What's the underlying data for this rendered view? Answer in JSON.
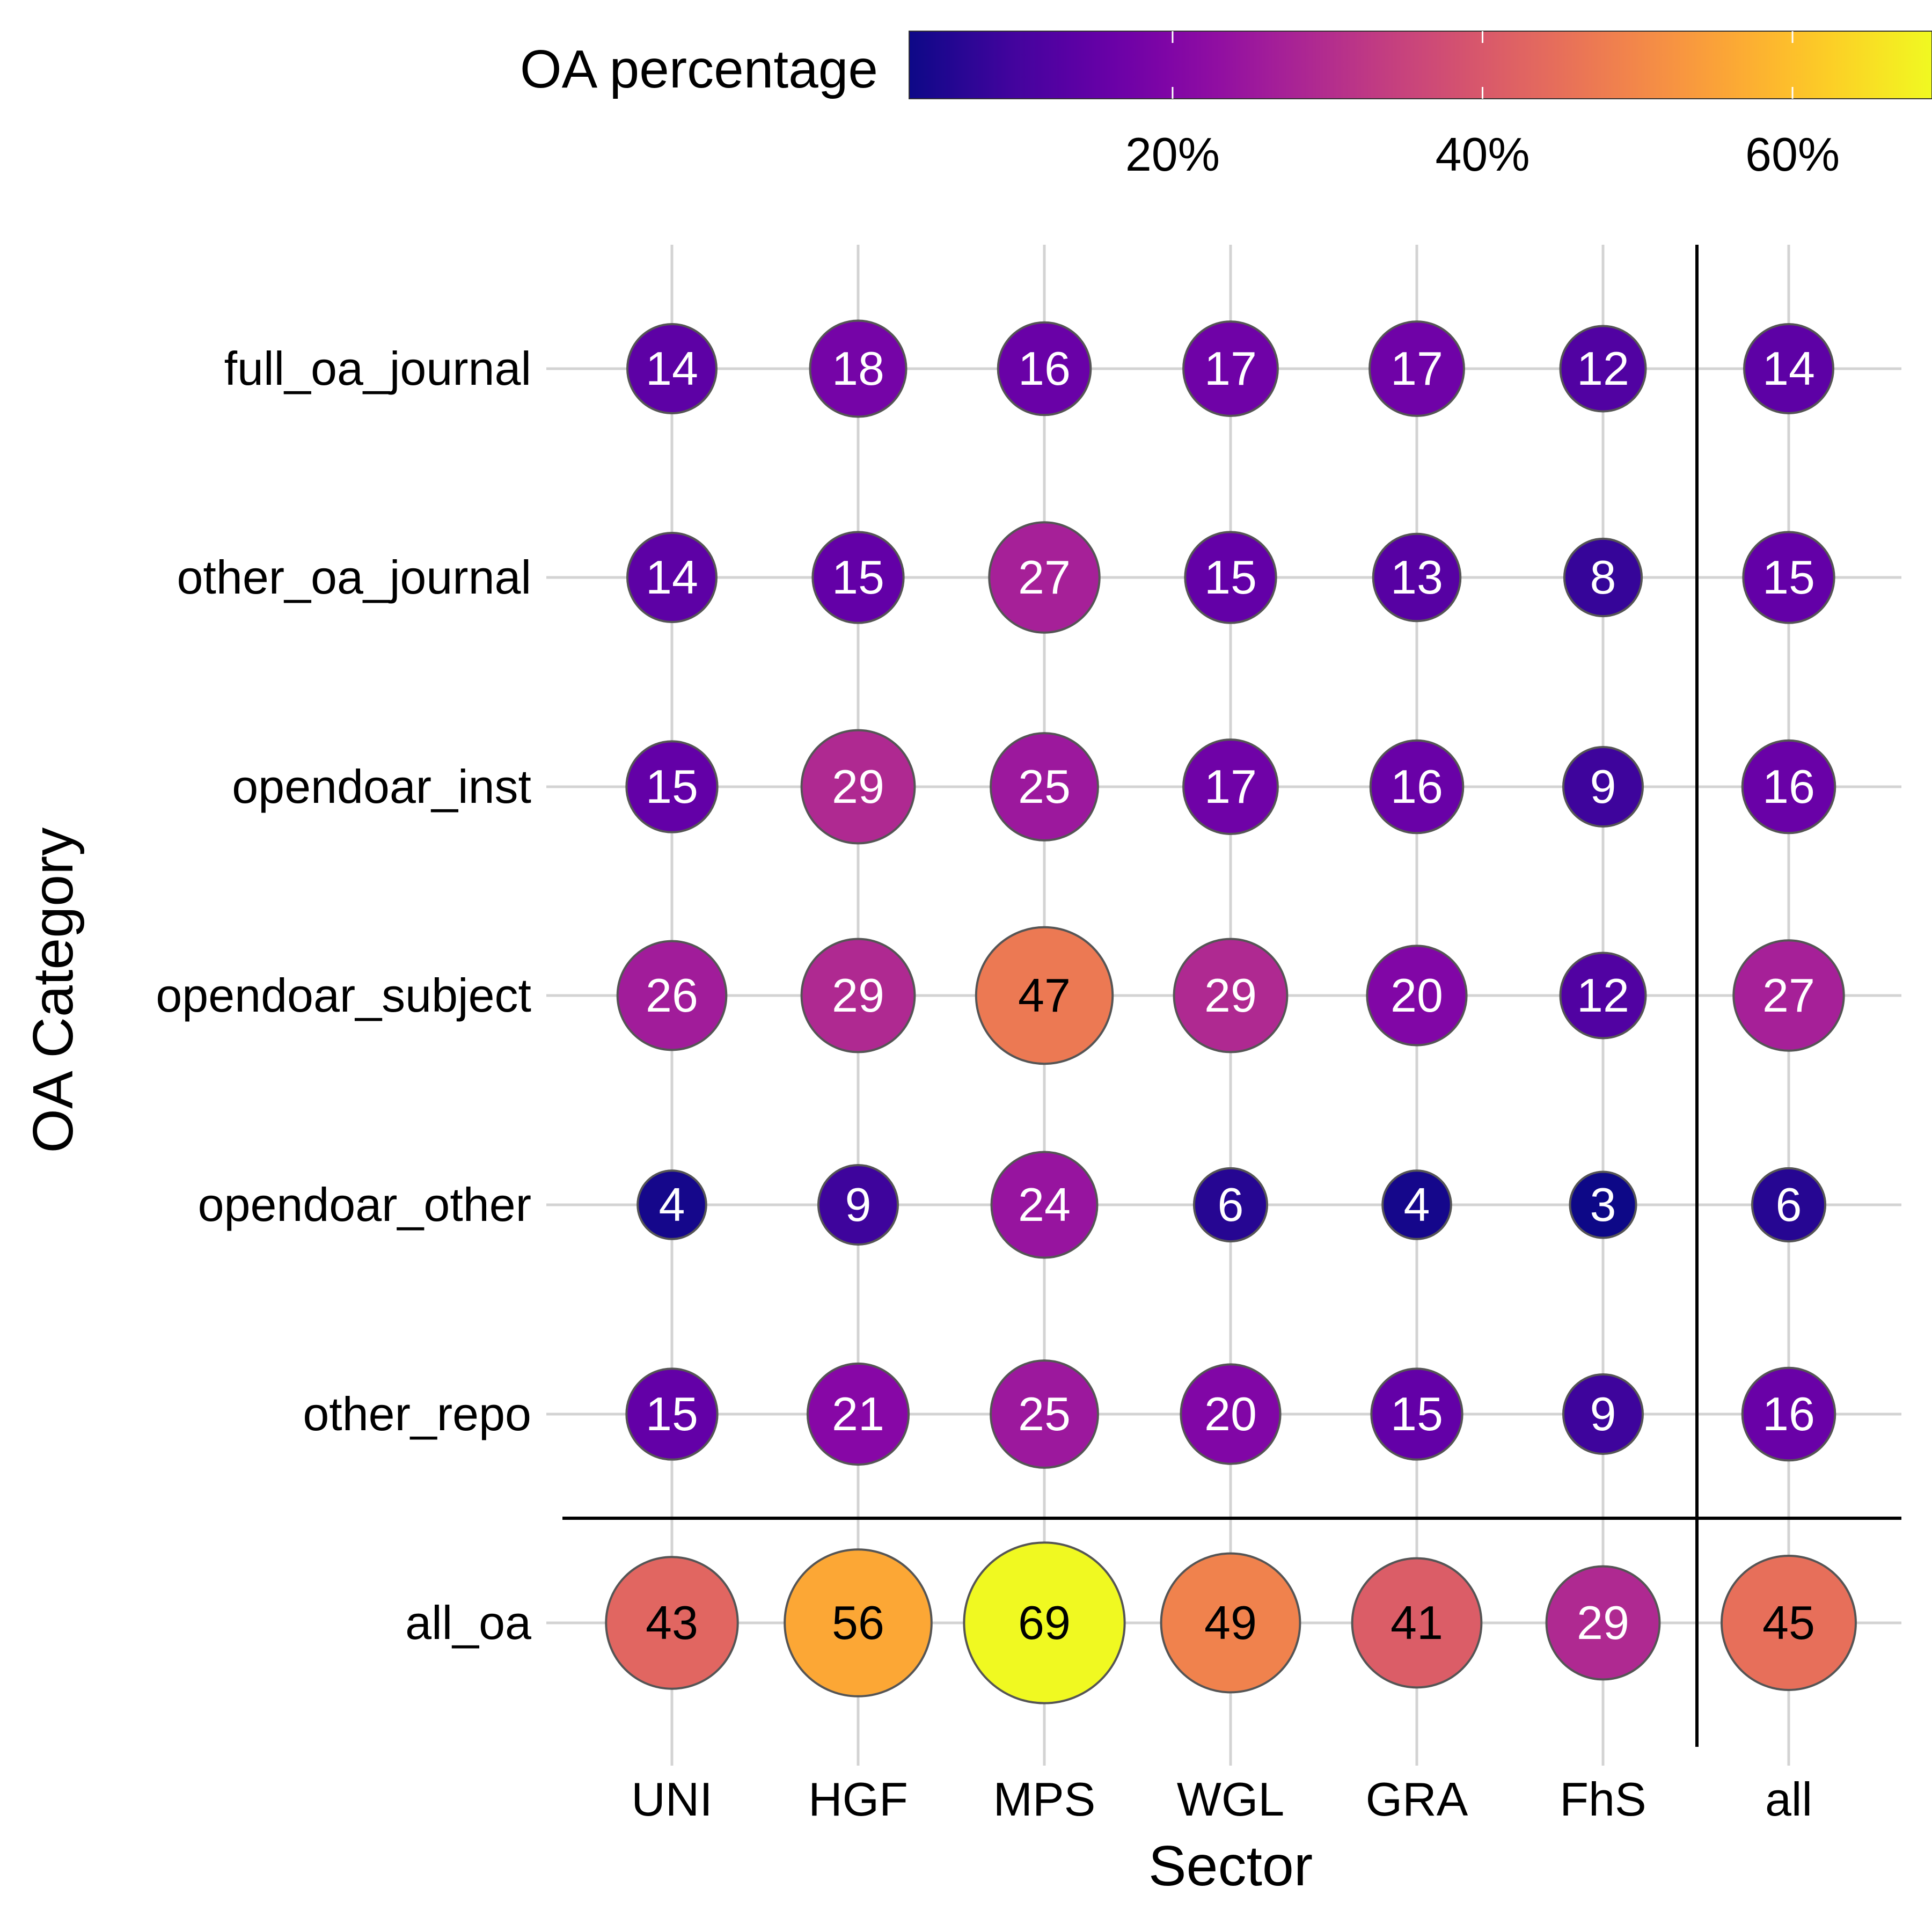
{
  "chart_data": {
    "type": "scatter",
    "subtype": "dot-matrix",
    "xlabel": "Sector",
    "ylabel": "OA Category",
    "categories_x": [
      "UNI",
      "HGF",
      "MPS",
      "WGL",
      "GRA",
      "FhS",
      "all"
    ],
    "categories_y": [
      "full_oa_journal",
      "other_oa_journal",
      "opendoar_inst",
      "opendoar_subject",
      "opendoar_other",
      "other_repo",
      "all_oa"
    ],
    "values": [
      [
        14,
        18,
        16,
        17,
        17,
        12,
        14
      ],
      [
        14,
        15,
        27,
        15,
        13,
        8,
        15
      ],
      [
        15,
        29,
        25,
        17,
        16,
        9,
        16
      ],
      [
        26,
        29,
        47,
        29,
        20,
        12,
        27
      ],
      [
        4,
        9,
        24,
        6,
        4,
        3,
        6
      ],
      [
        15,
        21,
        25,
        20,
        15,
        9,
        16
      ],
      [
        43,
        56,
        69,
        49,
        41,
        29,
        45
      ]
    ],
    "separators": {
      "before_x": "all",
      "before_y": "all_oa"
    },
    "grid": true,
    "legend": {
      "title": "OA percentage",
      "type": "colorbar",
      "palette": "plasma",
      "placement": "top",
      "range": [
        3,
        69
      ],
      "ticks": [
        20,
        40,
        60
      ],
      "tick_labels": [
        "20%",
        "40%",
        "60%"
      ]
    },
    "size_encodes": "value",
    "colors": {
      "grid": "#d3d3d3",
      "separator": "#000000",
      "point_stroke": "#555555"
    }
  }
}
